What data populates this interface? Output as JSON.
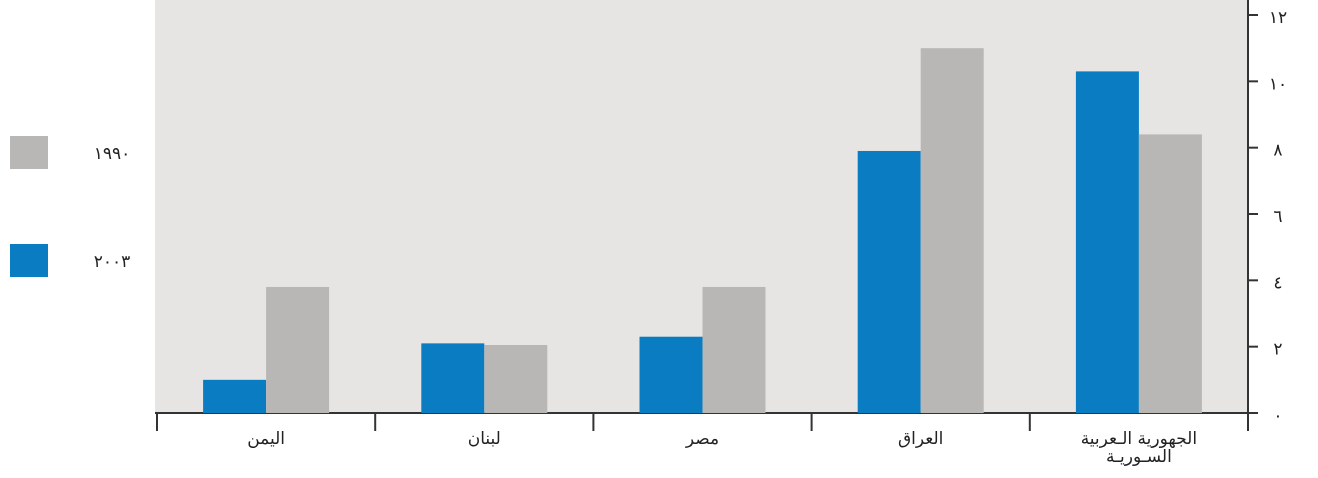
{
  "chart_data": {
    "type": "bar",
    "categories": [
      "اليمن",
      "لبنان",
      "مصر",
      "العراق",
      "الجهورية الـعربية\nالسـوريـة"
    ],
    "series": [
      {
        "name": "٢٠٠٣",
        "color": "#0a7dc2",
        "values": [
          1,
          2.1,
          2.3,
          7.9,
          10.3
        ]
      },
      {
        "name": "١٩٩٠",
        "color": "#b9b6b6",
        "values": [
          3.8,
          2.05,
          3.8,
          11,
          8.4
        ]
      }
    ],
    "ylim": [
      0,
      12
    ],
    "yticks": [
      {
        "value": 0,
        "label": "٠"
      },
      {
        "value": 2,
        "label": "٢"
      },
      {
        "value": 4,
        "label": "٤"
      },
      {
        "value": 6,
        "label": "٦"
      },
      {
        "value": 8,
        "label": "٨"
      },
      {
        "value": 10,
        "label": "١٠"
      },
      {
        "value": 12,
        "label": "١٢"
      }
    ],
    "legend": "left"
  }
}
